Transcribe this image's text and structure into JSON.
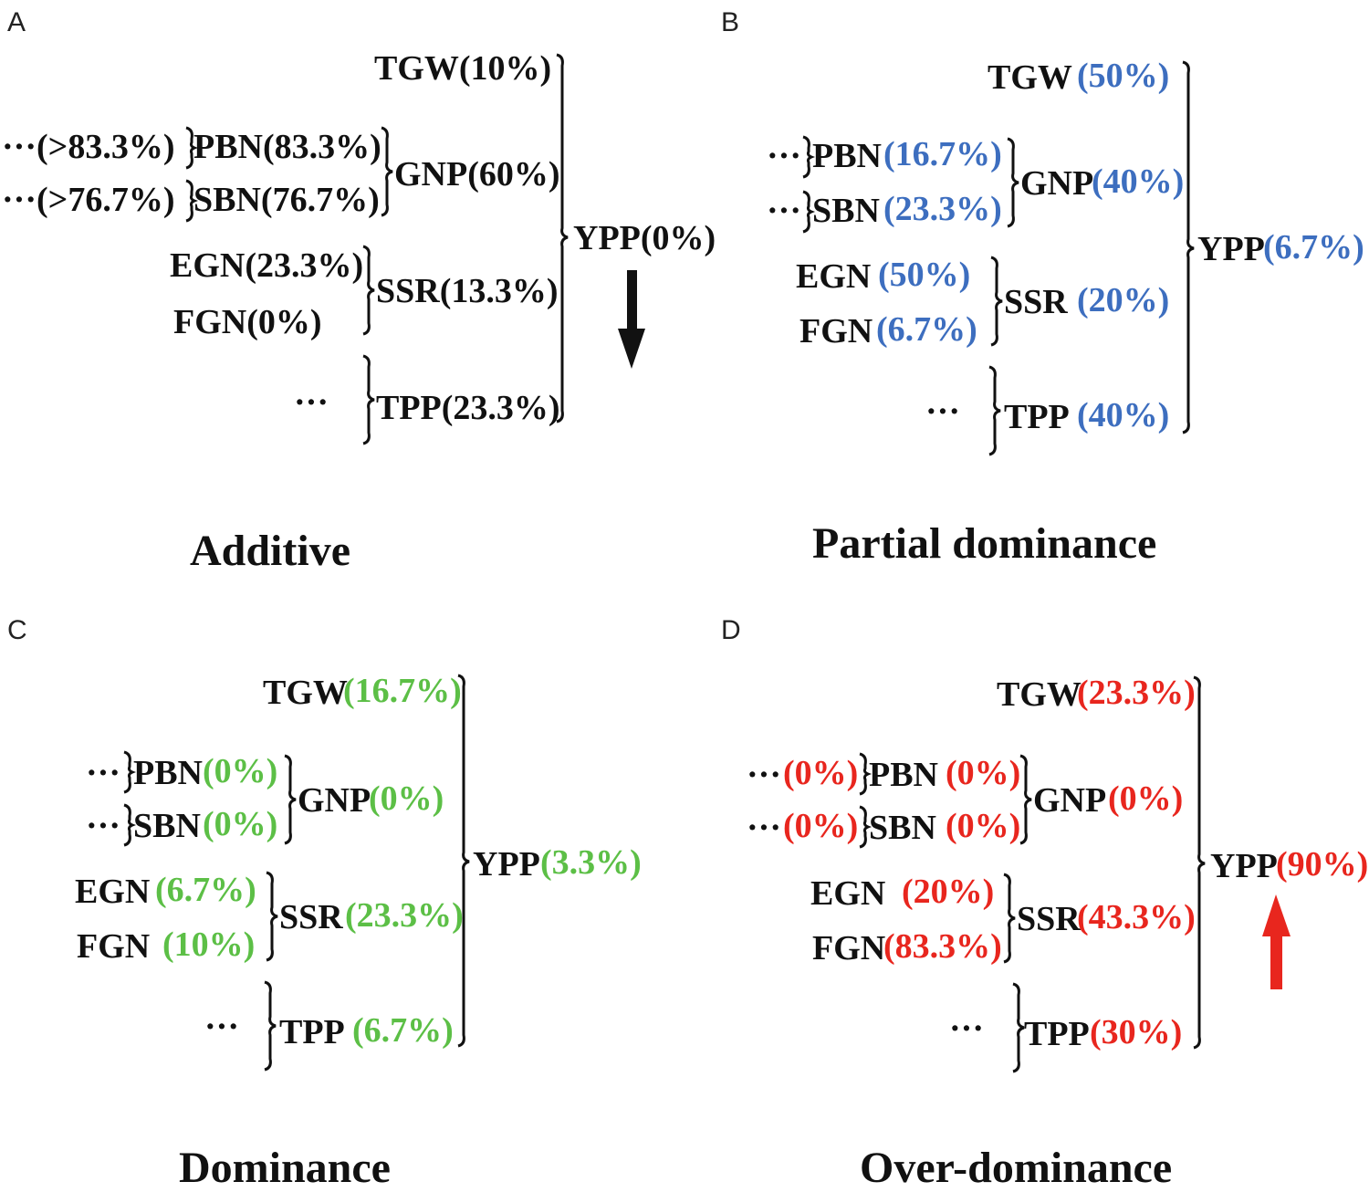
{
  "colors": {
    "black": "#111111",
    "blue": "#3d6ebf",
    "green": "#5cbf46",
    "red": "#e8261e"
  },
  "panels": {
    "A": {
      "letter": "A",
      "title": "Additive",
      "arrow": "down-arrow-icon",
      "tgw": "TGW(10%)",
      "pbn_pre": "···(>83.3%)",
      "pbn": "PBN(83.3%)",
      "sbn_pre": "···(>76.7%)",
      "sbn": "SBN(76.7%)",
      "gnp": "GNP(60%)",
      "egn": "EGN(23.3%)",
      "fgn": "FGN(0%)",
      "ssr": "SSR(13.3%)",
      "tpp_pre": "···",
      "tpp": "TPP(23.3%)",
      "ypp": "YPP(0%)"
    },
    "B": {
      "letter": "B",
      "title": "Partial dominance",
      "tgw": "TGW",
      "tgw_val": "(50%)",
      "pbn_pre": "···",
      "pbn": "PBN",
      "pbn_val": "(16.7%)",
      "sbn_pre": "···",
      "sbn": "SBN",
      "sbn_val": "(23.3%)",
      "gnp": "GNP",
      "gnp_val": "(40%)",
      "egn": "EGN",
      "egn_val": "(50%)",
      "fgn": "FGN",
      "fgn_val": "(6.7%)",
      "ssr": "SSR",
      "ssr_val": "(20%)",
      "tpp_pre": "···",
      "tpp": "TPP",
      "tpp_val": "(40%)",
      "ypp": "YPP",
      "ypp_val": "(6.7%)"
    },
    "C": {
      "letter": "C",
      "title": "Dominance",
      "tgw": "TGW",
      "tgw_val": "(16.7%)",
      "pbn_pre": "···",
      "pbn": "PBN",
      "pbn_val": "(0%)",
      "sbn_pre": "···",
      "sbn": "SBN",
      "sbn_val": "(0%)",
      "gnp": "GNP",
      "gnp_val": "(0%)",
      "egn": "EGN",
      "egn_val": "(6.7%)",
      "fgn": "FGN",
      "fgn_val": "(10%)",
      "ssr": "SSR",
      "ssr_val": "(23.3%)",
      "tpp_pre": "···",
      "tpp": "TPP",
      "tpp_val": "(6.7%)",
      "ypp": "YPP",
      "ypp_val": "(3.3%)"
    },
    "D": {
      "letter": "D",
      "title": "Over-dominance",
      "arrow": "up-arrow-icon",
      "tgw": "TGW",
      "tgw_val": "(23.3%)",
      "pbn_pre": "···",
      "pbn_pre_val": "(0%)",
      "pbn": "PBN",
      "pbn_val": "(0%)",
      "sbn_pre": "···",
      "sbn_pre_val": "(0%)",
      "sbn": "SBN",
      "sbn_val": "(0%)",
      "gnp": "GNP",
      "gnp_val": "(0%)",
      "egn": "EGN",
      "egn_val": "(20%)",
      "fgn": "FGN",
      "fgn_val": "(83.3%)",
      "ssr": "SSR",
      "ssr_val": "(43.3%)",
      "tpp_pre": "···",
      "tpp": "TPP",
      "tpp_val": "(30%)",
      "ypp": "YPP",
      "ypp_val": "(90%)"
    }
  }
}
